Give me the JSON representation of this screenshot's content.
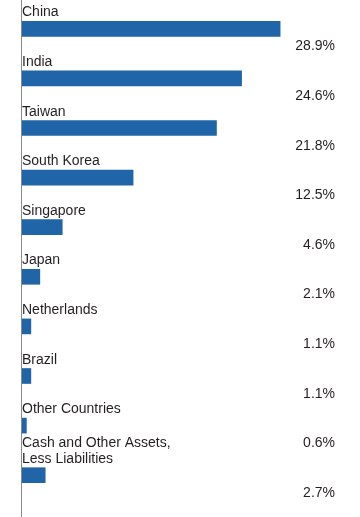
{
  "chart_data": {
    "type": "bar",
    "orientation": "horizontal",
    "categories": [
      "China",
      "India",
      "Taiwan",
      "South Korea",
      "Singapore",
      "Japan",
      "Netherlands",
      "Brazil",
      "Other Countries",
      "Cash and Other Assets, Less Liabilities"
    ],
    "values": [
      28.9,
      24.6,
      21.8,
      12.5,
      4.6,
      2.1,
      1.1,
      1.1,
      0.6,
      2.7
    ],
    "value_labels": [
      "28.9%",
      "24.6%",
      "21.8%",
      "12.5%",
      "4.6%",
      "2.1%",
      "1.1%",
      "1.1%",
      "0.6%",
      "2.7%"
    ],
    "color": "#1f65a8",
    "xlim": [
      0,
      30
    ],
    "data_labels": true,
    "tick_labels": false,
    "grid": false
  }
}
